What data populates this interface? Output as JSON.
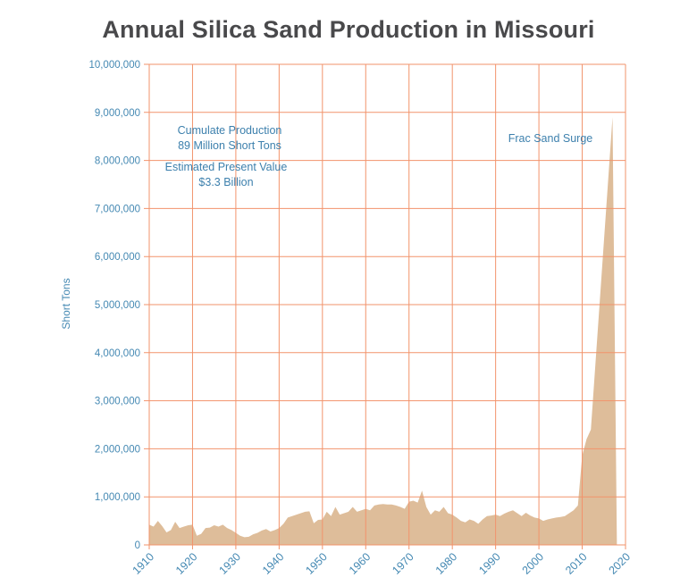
{
  "title": "Annual Silica Sand Production in Missouri",
  "y_axis": {
    "label": "Short Tons",
    "tick_values": [
      0,
      1000000,
      2000000,
      3000000,
      4000000,
      5000000,
      6000000,
      7000000,
      8000000,
      9000000,
      10000000
    ],
    "tick_labels": [
      "0",
      "1,000,000",
      "2,000,000",
      "3,000,000",
      "4,000,000",
      "5,000,000",
      "6,000,000",
      "7,000,000",
      "8,000,000",
      "9,000,000",
      "10,000,000"
    ]
  },
  "x_axis": {
    "tick_values": [
      1910,
      1920,
      1930,
      1940,
      1950,
      1960,
      1970,
      1980,
      1990,
      2000,
      2010,
      2020
    ],
    "tick_labels": [
      "1910",
      "1920",
      "1930",
      "1940",
      "1950",
      "1960",
      "1970",
      "1980",
      "1990",
      "2000",
      "2010",
      "2020"
    ]
  },
  "annotations": {
    "cumulative": {
      "line1": "Cumulate Production",
      "line2": "89 Million Short Tons"
    },
    "value": {
      "line1": "Estimated Present Value",
      "line2": "$3.3 Billion"
    },
    "frac": {
      "line1": "Frac Sand Surge"
    }
  },
  "colors": {
    "grid": "#f2936b",
    "area": "#debd9a",
    "tick_text": "#4589b3",
    "annotation_text": "#3d80ad",
    "title_text": "#49494b"
  },
  "chart_data": {
    "type": "area",
    "title": "Annual Silica Sand Production in Missouri",
    "xlabel": "",
    "ylabel": "Short Tons",
    "xlim": [
      1910,
      2020
    ],
    "ylim": [
      0,
      10000000
    ],
    "grid": true,
    "legend": false,
    "annotations": [
      "Cumulate Production 89 Million Short Tons",
      "Estimated Present Value $3.3 Billion",
      "Frac Sand Surge"
    ],
    "x": [
      1910,
      1911,
      1912,
      1913,
      1914,
      1915,
      1916,
      1917,
      1918,
      1919,
      1920,
      1921,
      1922,
      1923,
      1924,
      1925,
      1926,
      1927,
      1928,
      1929,
      1930,
      1931,
      1932,
      1933,
      1934,
      1935,
      1936,
      1937,
      1938,
      1939,
      1940,
      1941,
      1942,
      1943,
      1944,
      1945,
      1946,
      1947,
      1948,
      1949,
      1950,
      1951,
      1952,
      1953,
      1954,
      1955,
      1956,
      1957,
      1958,
      1959,
      1960,
      1961,
      1962,
      1963,
      1964,
      1965,
      1966,
      1967,
      1968,
      1969,
      1970,
      1971,
      1972,
      1973,
      1974,
      1975,
      1976,
      1977,
      1978,
      1979,
      1980,
      1981,
      1982,
      1983,
      1984,
      1985,
      1986,
      1987,
      1988,
      1989,
      1990,
      1991,
      1992,
      1993,
      1994,
      1995,
      1996,
      1997,
      1998,
      1999,
      2000,
      2001,
      2002,
      2003,
      2004,
      2005,
      2006,
      2007,
      2008,
      2009,
      2010,
      2011,
      2012,
      2013,
      2014,
      2015,
      2016,
      2017,
      2018
    ],
    "values": [
      420000,
      380000,
      500000,
      390000,
      260000,
      310000,
      480000,
      350000,
      380000,
      410000,
      420000,
      190000,
      230000,
      350000,
      360000,
      410000,
      380000,
      420000,
      350000,
      310000,
      250000,
      190000,
      160000,
      170000,
      220000,
      250000,
      300000,
      330000,
      280000,
      310000,
      350000,
      440000,
      570000,
      600000,
      630000,
      660000,
      690000,
      700000,
      450000,
      520000,
      530000,
      690000,
      600000,
      790000,
      630000,
      660000,
      690000,
      790000,
      690000,
      720000,
      750000,
      720000,
      820000,
      840000,
      850000,
      840000,
      840000,
      820000,
      790000,
      750000,
      900000,
      920000,
      880000,
      1130000,
      790000,
      630000,
      720000,
      690000,
      790000,
      660000,
      630000,
      570000,
      500000,
      470000,
      530000,
      500000,
      440000,
      530000,
      600000,
      610000,
      630000,
      600000,
      650000,
      690000,
      720000,
      660000,
      600000,
      670000,
      610000,
      570000,
      550000,
      500000,
      530000,
      550000,
      570000,
      580000,
      600000,
      660000,
      720000,
      820000,
      1860000,
      2200000,
      2400000,
      3700000,
      5000000,
      6300000,
      7600000,
      8900000,
      100000
    ]
  }
}
